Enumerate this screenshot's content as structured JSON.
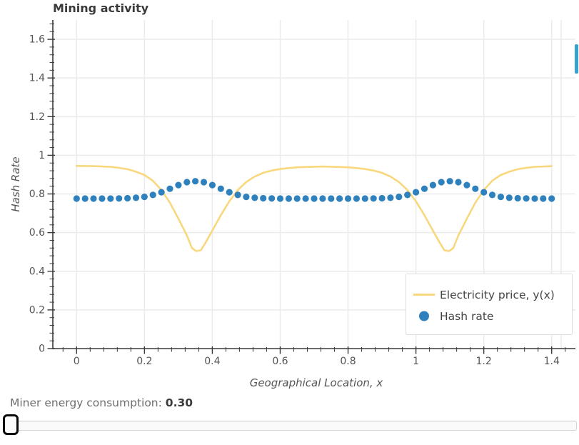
{
  "page": {
    "background": "#ffffff"
  },
  "chart_data": {
    "type": "line",
    "title": "Mining activity",
    "xlabel": "Geographical Location, x",
    "ylabel": "Hash Rate",
    "xlim": [
      -0.07,
      1.47
    ],
    "ylim": [
      0,
      1.7
    ],
    "x_ticks": [
      0,
      0.2,
      0.4,
      0.6,
      0.8,
      1,
      1.2,
      1.4
    ],
    "y_ticks": [
      0,
      0.2,
      0.4,
      0.6,
      0.8,
      1,
      1.2,
      1.4,
      1.6
    ],
    "minor_tick_step": 0.04,
    "grid": true,
    "legend_position": "lower right",
    "series": [
      {
        "name": "Electricity price, y(x)",
        "type": "line",
        "color": "#f8d77d",
        "x": [
          0,
          0.05,
          0.1,
          0.125,
          0.15,
          0.175,
          0.2,
          0.225,
          0.25,
          0.275,
          0.3,
          0.325,
          0.34,
          0.352,
          0.366,
          0.38,
          0.4,
          0.425,
          0.45,
          0.475,
          0.5,
          0.525,
          0.55,
          0.575,
          0.6,
          0.65,
          0.7,
          0.725,
          0.75,
          0.8,
          0.85,
          0.875,
          0.9,
          0.925,
          0.95,
          0.975,
          1.0,
          1.025,
          1.05,
          1.07,
          1.084,
          1.098,
          1.11,
          1.125,
          1.15,
          1.175,
          1.2,
          1.225,
          1.25,
          1.275,
          1.3,
          1.325,
          1.35,
          1.4
        ],
        "y": [
          0.945,
          0.944,
          0.94,
          0.935,
          0.928,
          0.915,
          0.898,
          0.868,
          0.82,
          0.755,
          0.672,
          0.585,
          0.52,
          0.505,
          0.508,
          0.548,
          0.61,
          0.69,
          0.762,
          0.82,
          0.862,
          0.89,
          0.909,
          0.921,
          0.929,
          0.938,
          0.941,
          0.942,
          0.941,
          0.938,
          0.929,
          0.921,
          0.909,
          0.89,
          0.862,
          0.82,
          0.762,
          0.69,
          0.61,
          0.548,
          0.508,
          0.505,
          0.52,
          0.585,
          0.672,
          0.755,
          0.82,
          0.868,
          0.898,
          0.915,
          0.928,
          0.935,
          0.94,
          0.944
        ]
      },
      {
        "name": "Hash rate",
        "type": "scatter",
        "color": "#2f81bd",
        "x": [
          0,
          0.025,
          0.05,
          0.075,
          0.1,
          0.125,
          0.15,
          0.175,
          0.2,
          0.225,
          0.25,
          0.275,
          0.3,
          0.325,
          0.35,
          0.375,
          0.4,
          0.425,
          0.45,
          0.475,
          0.5,
          0.525,
          0.55,
          0.575,
          0.6,
          0.625,
          0.65,
          0.675,
          0.7,
          0.725,
          0.75,
          0.775,
          0.8,
          0.825,
          0.85,
          0.875,
          0.9,
          0.925,
          0.95,
          0.975,
          1.0,
          1.025,
          1.05,
          1.075,
          1.1,
          1.125,
          1.15,
          1.175,
          1.2,
          1.225,
          1.25,
          1.275,
          1.3,
          1.325,
          1.35,
          1.375,
          1.4
        ],
        "y": [
          0.776,
          0.776,
          0.776,
          0.776,
          0.776,
          0.777,
          0.778,
          0.78,
          0.785,
          0.795,
          0.809,
          0.827,
          0.846,
          0.861,
          0.866,
          0.861,
          0.846,
          0.827,
          0.809,
          0.795,
          0.785,
          0.78,
          0.778,
          0.777,
          0.776,
          0.776,
          0.776,
          0.776,
          0.776,
          0.776,
          0.776,
          0.776,
          0.776,
          0.776,
          0.776,
          0.777,
          0.778,
          0.78,
          0.785,
          0.795,
          0.809,
          0.827,
          0.846,
          0.861,
          0.866,
          0.861,
          0.846,
          0.827,
          0.809,
          0.795,
          0.785,
          0.78,
          0.778,
          0.777,
          0.776,
          0.776,
          0.776
        ]
      }
    ]
  },
  "caption": {
    "label": "Miner energy consumption: ",
    "value": "0.30"
  },
  "colors": {
    "line_yellow": "#f8d77d",
    "dot_blue": "#2f81bd",
    "scrollbar_blue": "#39a2d5",
    "grid": "#ebebeb",
    "spine": "#3a3a3a",
    "tick_label": "#555555",
    "title_text": "#3a3a3a",
    "legend_text": "#444444",
    "caption_text": "#6e6e6e",
    "caption_value": "#3b3b3b"
  }
}
